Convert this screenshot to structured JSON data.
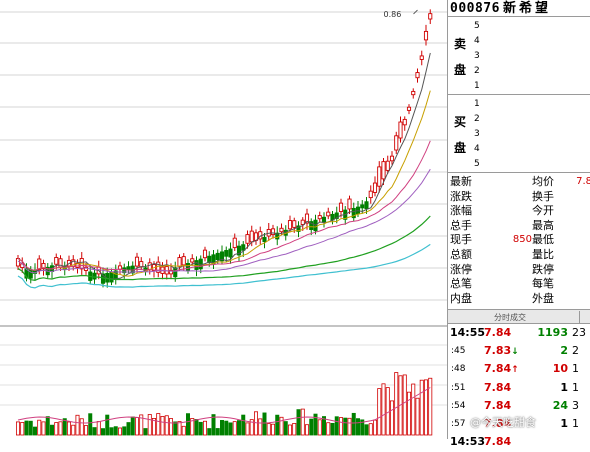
{
  "stock": {
    "code": "000876",
    "name": "新希望"
  },
  "chart": {
    "high_marker": "0.86",
    "colors": {
      "up": "#d00000",
      "down": "#008000",
      "ma_white": "#555555",
      "ma_yellow": "#c8a000",
      "ma_pink": "#d04080",
      "ma_green": "#20a020",
      "ma_cyan": "#40c0d0",
      "ma_purple": "#a060c0"
    }
  },
  "order_book": {
    "sell_label": [
      "卖",
      "盘"
    ],
    "sell_levels": [
      "5",
      "4",
      "3",
      "2",
      "1"
    ],
    "buy_label": [
      "买",
      "盘"
    ],
    "buy_levels": [
      "1",
      "2",
      "3",
      "4",
      "5"
    ]
  },
  "stats": [
    {
      "k1": "最新",
      "v1": "",
      "k2": "均价",
      "v2": "7.8"
    },
    {
      "k1": "涨跌",
      "v1": "",
      "k2": "换手",
      "v2": ""
    },
    {
      "k1": "涨幅",
      "v1": "",
      "k2": "今开",
      "v2": ""
    },
    {
      "k1": "总手",
      "v1": "",
      "k2": "最高",
      "v2": ""
    },
    {
      "k1": "现手",
      "v1": "850",
      "k2": "最低",
      "v2": ""
    },
    {
      "k1": "总额",
      "v1": "",
      "k2": "量比",
      "v2": ""
    },
    {
      "k1": "涨停",
      "v1": "",
      "k2": "跌停",
      "v2": ""
    },
    {
      "k1": "总笔",
      "v1": "",
      "k2": "每笔",
      "v2": ""
    },
    {
      "k1": "内盘",
      "v1": "",
      "k2": "外盘",
      "v2": ""
    }
  ],
  "trades_header": "分时成交",
  "trades": [
    {
      "time": "14:55",
      "price": "7.84",
      "dir": "",
      "vol": "1193",
      "vol_color": "green",
      "count": "23"
    },
    {
      "time": ":45",
      "price": "7.83",
      "dir": "↓",
      "vol": "2",
      "vol_color": "green",
      "count": "2"
    },
    {
      "time": ":48",
      "price": "7.84",
      "dir": "↑",
      "vol": "10",
      "vol_color": "red",
      "count": "1"
    },
    {
      "time": ":51",
      "price": "7.84",
      "dir": "",
      "vol": "1",
      "vol_color": "black",
      "count": "1"
    },
    {
      "time": ":54",
      "price": "7.84",
      "dir": "",
      "vol": "24",
      "vol_color": "green",
      "count": "3"
    },
    {
      "time": ":57",
      "price": "7.84",
      "dir": "",
      "vol": "1",
      "vol_color": "black",
      "count": "1"
    },
    {
      "time": "14:53",
      "price": "7.84",
      "dir": "",
      "vol": "",
      "vol_color": "black",
      "count": ""
    }
  ],
  "watermark": "@今天吃甜食"
}
